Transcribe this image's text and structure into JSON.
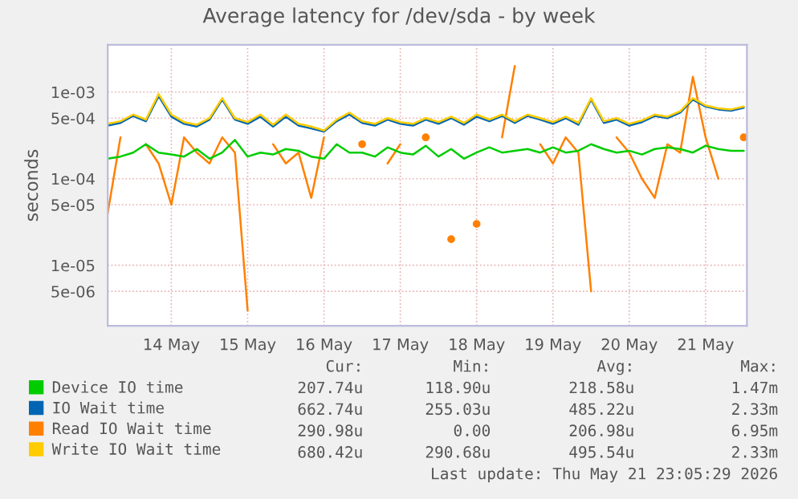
{
  "chart_data": {
    "type": "line",
    "title": "Average latency for /dev/sda - by week",
    "ylabel": "seconds",
    "log": "y",
    "grid": true,
    "legend": "bottom",
    "marker": "none",
    "line_style": "solid",
    "ylim": [
      2e-06,
      0.0035
    ],
    "yticks": [
      {
        "value": 5e-06,
        "label": "5e-06"
      },
      {
        "value": 1e-05,
        "label": "1e-05"
      },
      {
        "value": 5e-05,
        "label": "5e-05"
      },
      {
        "value": 0.0001,
        "label": "1e-04"
      },
      {
        "value": 0.0005,
        "label": "5e-04"
      },
      {
        "value": 0.001,
        "label": "1e-03"
      }
    ],
    "xlim": [
      "2026-05-13T16:00",
      "2026-05-22T01:00"
    ],
    "xticks": [
      {
        "value": "2026-05-14T12:00",
        "label": "14 May"
      },
      {
        "value": "2026-05-15T12:00",
        "label": "15 May"
      },
      {
        "value": "2026-05-16T12:00",
        "label": "16 May"
      },
      {
        "value": "2026-05-17T12:00",
        "label": "17 May"
      },
      {
        "value": "2026-05-18T12:00",
        "label": "18 May"
      },
      {
        "value": "2026-05-19T12:00",
        "label": "19 May"
      },
      {
        "value": "2026-05-20T12:00",
        "label": "20 May"
      },
      {
        "value": "2026-05-21T12:00",
        "label": "21 May"
      }
    ],
    "x": [
      "2026-05-13T16:00",
      "2026-05-13T20:00",
      "2026-05-14T00:00",
      "2026-05-14T04:00",
      "2026-05-14T08:00",
      "2026-05-14T12:00",
      "2026-05-14T16:00",
      "2026-05-14T20:00",
      "2026-05-15T00:00",
      "2026-05-15T04:00",
      "2026-05-15T08:00",
      "2026-05-15T12:00",
      "2026-05-15T16:00",
      "2026-05-15T20:00",
      "2026-05-16T00:00",
      "2026-05-16T04:00",
      "2026-05-16T08:00",
      "2026-05-16T12:00",
      "2026-05-16T16:00",
      "2026-05-16T20:00",
      "2026-05-17T00:00",
      "2026-05-17T04:00",
      "2026-05-17T08:00",
      "2026-05-17T12:00",
      "2026-05-17T16:00",
      "2026-05-17T20:00",
      "2026-05-18T00:00",
      "2026-05-18T04:00",
      "2026-05-18T08:00",
      "2026-05-18T12:00",
      "2026-05-18T16:00",
      "2026-05-18T20:00",
      "2026-05-19T00:00",
      "2026-05-19T04:00",
      "2026-05-19T08:00",
      "2026-05-19T12:00",
      "2026-05-19T16:00",
      "2026-05-19T20:00",
      "2026-05-20T00:00",
      "2026-05-20T04:00",
      "2026-05-20T08:00",
      "2026-05-20T12:00",
      "2026-05-20T16:00",
      "2026-05-20T20:00",
      "2026-05-21T00:00",
      "2026-05-21T04:00",
      "2026-05-21T08:00",
      "2026-05-21T12:00",
      "2026-05-21T16:00",
      "2026-05-21T20:00",
      "2026-05-22T00:00"
    ],
    "series": [
      {
        "name": "Read IO Wait time",
        "color": "#ff8000",
        "values": [
          4e-05,
          0.0003,
          null,
          0.00025,
          0.00015,
          5e-05,
          0.0003,
          0.0002,
          0.00015,
          0.0003,
          0.0002,
          3e-06,
          null,
          0.00025,
          0.00015,
          0.0002,
          6e-05,
          0.0003,
          null,
          null,
          0.00025,
          null,
          0.00015,
          0.00025,
          null,
          0.0003,
          null,
          2e-05,
          null,
          3e-05,
          null,
          0.0003,
          0.002,
          null,
          0.00025,
          0.00015,
          0.0003,
          0.0002,
          5e-06,
          null,
          0.0003,
          0.0002,
          0.0001,
          6e-05,
          0.00025,
          0.0002,
          0.0015,
          0.0003,
          0.0001,
          null,
          0.0003
        ]
      },
      {
        "name": "Device IO time",
        "color": "#00cc00",
        "values": [
          0.00017,
          0.00018,
          0.0002,
          0.00025,
          0.0002,
          0.00019,
          0.00018,
          0.00022,
          0.00017,
          0.0002,
          0.00028,
          0.00018,
          0.0002,
          0.00019,
          0.00022,
          0.00021,
          0.00018,
          0.00017,
          0.00025,
          0.0002,
          0.0002,
          0.00018,
          0.00023,
          0.0002,
          0.00019,
          0.00024,
          0.00018,
          0.00022,
          0.00017,
          0.0002,
          0.00023,
          0.0002,
          0.00021,
          0.00022,
          0.0002,
          0.00023,
          0.0002,
          0.00021,
          0.00025,
          0.00022,
          0.0002,
          0.00021,
          0.00019,
          0.00022,
          0.00023,
          0.00022,
          0.0002,
          0.00024,
          0.00022,
          0.00021,
          0.00021
        ]
      },
      {
        "name": "IO Wait time",
        "color": "#0066b3",
        "values": [
          0.00041,
          0.00044,
          0.00053,
          0.00046,
          0.0009,
          0.00052,
          0.00043,
          0.0004,
          0.00048,
          0.00082,
          0.00048,
          0.00043,
          0.00052,
          0.0004,
          0.00052,
          0.00041,
          0.00038,
          0.00035,
          0.00046,
          0.00055,
          0.00044,
          0.00041,
          0.00048,
          0.00043,
          0.00041,
          0.00048,
          0.00043,
          0.0005,
          0.00042,
          0.00052,
          0.00046,
          0.00053,
          0.00044,
          0.00053,
          0.00048,
          0.00043,
          0.0005,
          0.00042,
          0.00082,
          0.00044,
          0.00048,
          0.00041,
          0.00045,
          0.00053,
          0.0005,
          0.00058,
          0.00082,
          0.00068,
          0.00063,
          0.00061,
          0.00066
        ]
      },
      {
        "name": "Write IO Wait time",
        "color": "#ffcc00",
        "values": [
          0.00043,
          0.00046,
          0.00055,
          0.00048,
          0.00095,
          0.00055,
          0.00045,
          0.00042,
          0.0005,
          0.00085,
          0.0005,
          0.00045,
          0.00055,
          0.00042,
          0.00055,
          0.00043,
          0.0004,
          0.00036,
          0.00048,
          0.00058,
          0.00046,
          0.00043,
          0.0005,
          0.00045,
          0.00043,
          0.0005,
          0.00045,
          0.00052,
          0.00044,
          0.00055,
          0.00048,
          0.00055,
          0.00046,
          0.00055,
          0.0005,
          0.00045,
          0.00052,
          0.00044,
          0.00085,
          0.00046,
          0.0005,
          0.00043,
          0.00047,
          0.00055,
          0.00052,
          0.0006,
          0.00085,
          0.0007,
          0.00065,
          0.00063,
          0.00068
        ]
      }
    ],
    "annotations": [
      "Cur:",
      "Min:",
      "Avg:",
      "Max:",
      "207.74u",
      "118.90u",
      "218.58u",
      "1.47m",
      "662.74u",
      "255.03u",
      "485.22u",
      "2.33m",
      "290.98u",
      "0.00",
      "206.98u",
      "6.95m",
      "680.42u",
      "290.68u",
      "495.54u",
      "2.33m",
      "Last update: Thu May 21 23:05:29 2026"
    ]
  }
}
